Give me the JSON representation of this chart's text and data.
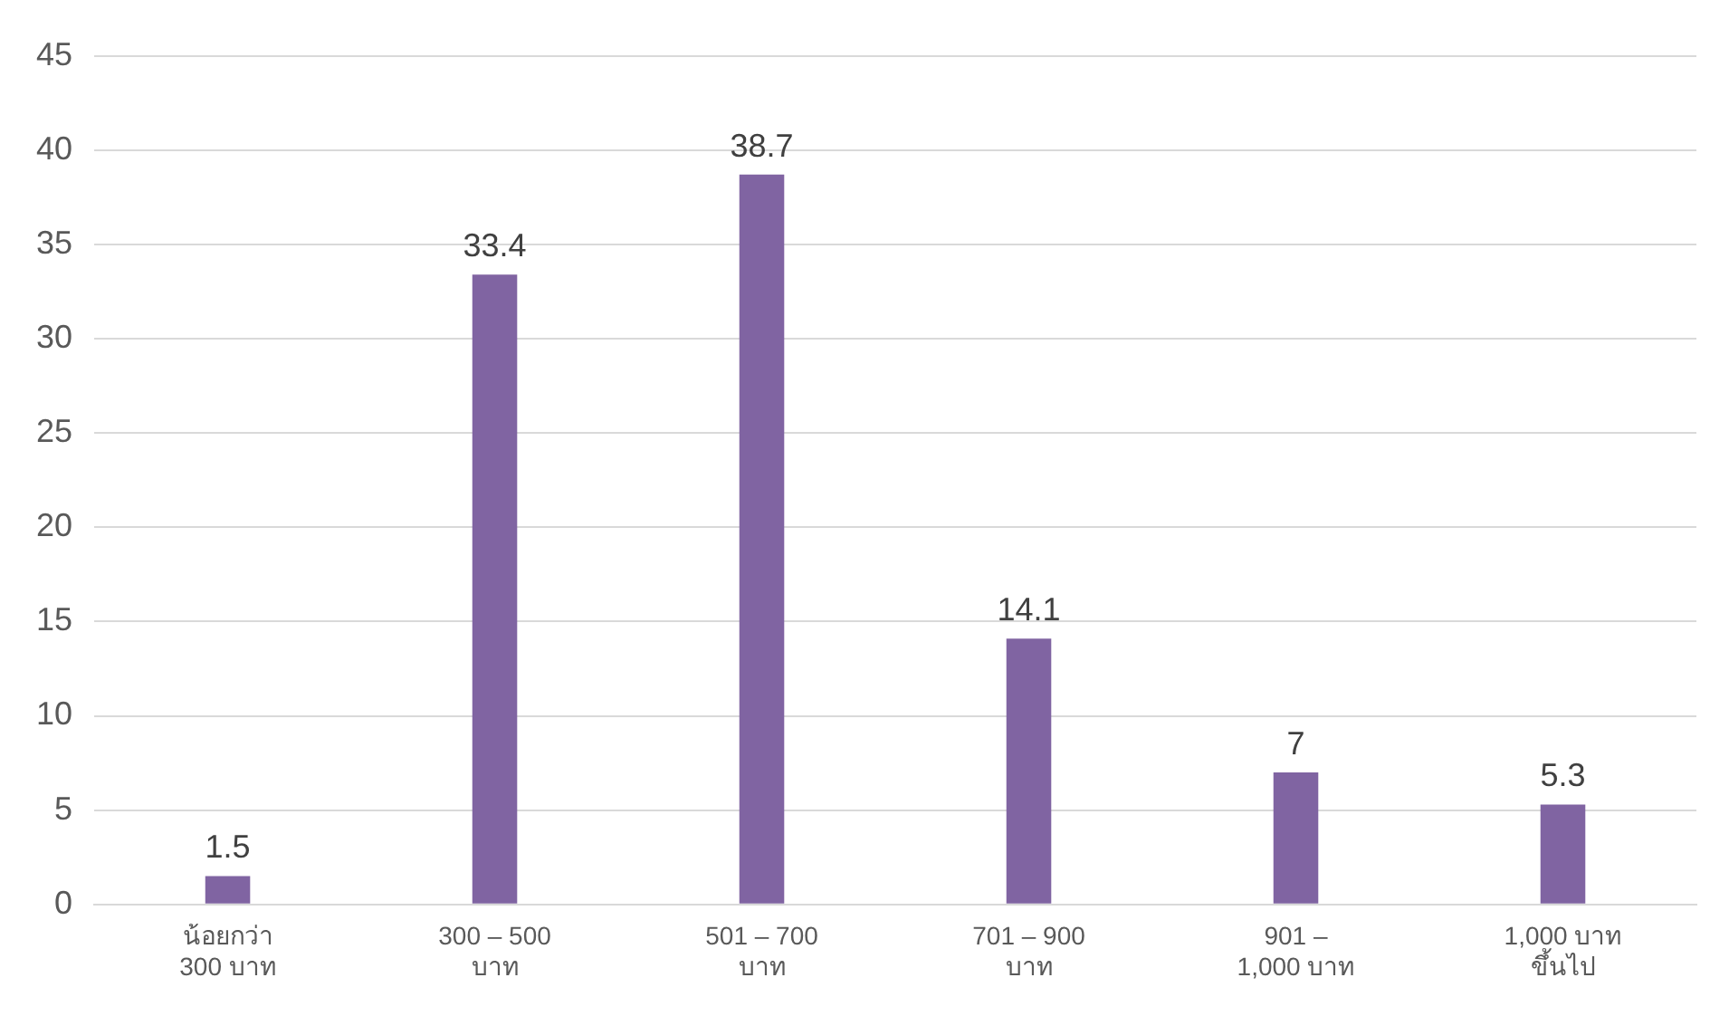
{
  "chart_data": {
    "type": "bar",
    "categories": [
      "น้อยกว่า\n300 บาท",
      "300 – 500\nบาท",
      "501 – 700\nบาท",
      "701 – 900\nบาท",
      "901 –\n1,000 บาท",
      "1,000 บาท\nขึ้นไป"
    ],
    "values": [
      1.5,
      33.4,
      38.7,
      14.1,
      7,
      5.3
    ],
    "color": "#8064a2",
    "ylim": [
      0,
      45
    ],
    "yticks": [
      0,
      5,
      10,
      15,
      20,
      25,
      30,
      35,
      40,
      45
    ],
    "grid": "y",
    "data_labels": true,
    "legend": false
  }
}
